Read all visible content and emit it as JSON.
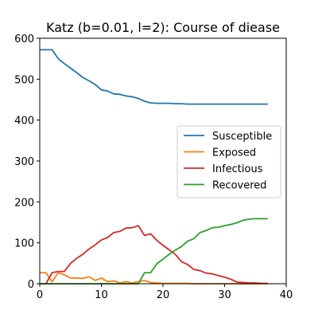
{
  "chart_data": {
    "type": "line",
    "title": "Katz (b=0.01, l=2): Course of diease",
    "xlabel": "",
    "ylabel": "",
    "xlim": [
      0,
      40
    ],
    "ylim": [
      0,
      600
    ],
    "x_ticks": [
      0,
      10,
      20,
      30,
      40
    ],
    "y_ticks": [
      0,
      100,
      200,
      300,
      400,
      500,
      600
    ],
    "grid": false,
    "legend_position": "center-right",
    "x": [
      0,
      1,
      2,
      3,
      4,
      5,
      6,
      7,
      8,
      9,
      10,
      11,
      12,
      13,
      14,
      15,
      16,
      17,
      18,
      19,
      20,
      21,
      22,
      23,
      24,
      25,
      26,
      27,
      28,
      29,
      30,
      31,
      32,
      33,
      34,
      35,
      36,
      37
    ],
    "series": [
      {
        "name": "Susceptible",
        "color": "#1f77b4",
        "values": [
          572,
          572,
          572,
          550,
          538,
          527,
          516,
          504,
          496,
          487,
          474,
          471,
          464,
          463,
          459,
          457,
          453,
          446,
          442,
          441,
          441,
          441,
          440,
          440,
          439,
          439,
          439,
          439,
          439,
          439,
          439,
          439,
          439,
          439,
          439,
          439,
          439,
          439
        ]
      },
      {
        "name": "Exposed",
        "color": "#ff7f0e",
        "values": [
          27,
          27,
          5,
          27,
          22,
          14,
          14,
          13,
          17,
          8,
          14,
          5,
          7,
          2,
          5,
          2,
          5,
          8,
          3,
          2,
          1,
          1,
          1,
          1,
          1,
          0,
          0,
          0,
          0,
          0,
          0,
          0,
          0,
          0,
          0,
          0,
          0,
          0
        ]
      },
      {
        "name": "Infectious",
        "color": "#d62728",
        "values": [
          0,
          0,
          27,
          30,
          30,
          50,
          62,
          72,
          85,
          95,
          107,
          113,
          125,
          128,
          136,
          137,
          142,
          118,
          122,
          106,
          94,
          83,
          72,
          54,
          47,
          35,
          32,
          26,
          24,
          20,
          16,
          11,
          4,
          3,
          2,
          2,
          1,
          1
        ]
      },
      {
        "name": "Recovered",
        "color": "#2ca02c",
        "values": [
          0,
          0,
          0,
          0,
          0,
          0,
          0,
          0,
          0,
          0,
          0,
          0,
          0,
          0,
          0,
          0,
          0,
          27,
          27,
          49,
          60,
          72,
          82,
          91,
          104,
          110,
          125,
          130,
          137,
          138,
          142,
          145,
          149,
          155,
          158,
          159,
          159,
          159
        ]
      }
    ]
  }
}
